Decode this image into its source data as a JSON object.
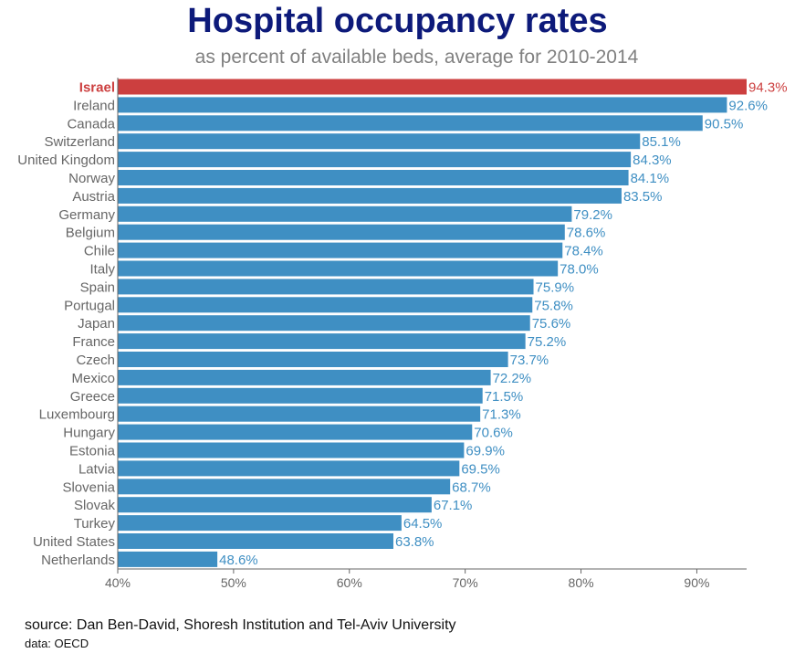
{
  "header": {
    "title": "Hospital occupancy rates",
    "subtitle": "as percent of available beds, average for 2010-2014"
  },
  "footer": {
    "source": "source: Dan Ben-David, Shoresh Institution and Tel-Aviv University",
    "data_note": "data: OECD"
  },
  "colors": {
    "title": "#0d1a7a",
    "bar": "#3f8fc3",
    "highlight": "#cc3f3f",
    "label_text": "#666666",
    "value_text": "#3f8fc3"
  },
  "chart_data": {
    "type": "bar",
    "orientation": "horizontal",
    "title": "Hospital occupancy rates",
    "subtitle": "as percent of available beds, average for 2010-2014",
    "categories": [
      "Israel",
      "Ireland",
      "Canada",
      "Switzerland",
      "United Kingdom",
      "Norway",
      "Austria",
      "Germany",
      "Belgium",
      "Chile",
      "Italy",
      "Spain",
      "Portugal",
      "Japan",
      "France",
      "Czech",
      "Mexico",
      "Greece",
      "Luxembourg",
      "Hungary",
      "Estonia",
      "Latvia",
      "Slovenia",
      "Slovak",
      "Turkey",
      "United States",
      "Netherlands"
    ],
    "values": [
      94.3,
      92.6,
      90.5,
      85.1,
      84.3,
      84.1,
      83.5,
      79.2,
      78.6,
      78.4,
      78.0,
      75.9,
      75.8,
      75.6,
      75.2,
      73.7,
      72.2,
      71.5,
      71.3,
      70.6,
      69.9,
      69.5,
      68.7,
      67.1,
      64.5,
      63.8,
      48.6
    ],
    "value_labels": [
      "94.3%",
      "92.6%",
      "90.5%",
      "85.1%",
      "84.3%",
      "84.1%",
      "83.5%",
      "79.2%",
      "78.6%",
      "78.4%",
      "78.0%",
      "75.9%",
      "75.8%",
      "75.6%",
      "75.2%",
      "73.7%",
      "72.2%",
      "71.5%",
      "71.3%",
      "70.6%",
      "69.9%",
      "69.5%",
      "68.7%",
      "67.1%",
      "64.5%",
      "63.8%",
      "48.6%"
    ],
    "highlight_category": "Israel",
    "xlim": [
      40,
      94.3
    ],
    "xticks": [
      40,
      50,
      60,
      70,
      80,
      90
    ],
    "xtick_labels": [
      "40%",
      "50%",
      "60%",
      "70%",
      "80%",
      "90%"
    ],
    "xlabel": "",
    "ylabel": "",
    "grid": false,
    "legend": "none"
  }
}
